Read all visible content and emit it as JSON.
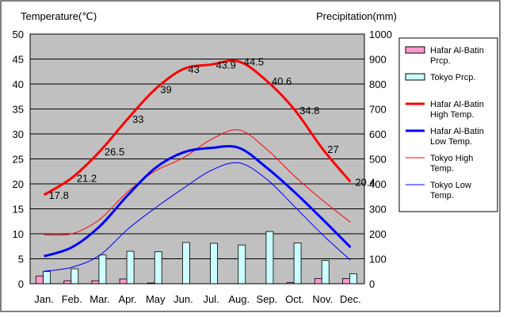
{
  "chart_data": {
    "type": "bar+line",
    "left_axis_title": "Temperature(℃)",
    "right_axis_title": "Precipitation(mm)",
    "categories": [
      "Jan.",
      "Feb.",
      "Mar.",
      "Apr.",
      "May",
      "Jun.",
      "Jul.",
      "Aug.",
      "Sep.",
      "Oct.",
      "Nov.",
      "Dec."
    ],
    "temp_ylim": [
      0,
      50
    ],
    "temp_ticks": [
      "0",
      "5",
      "10",
      "15",
      "20",
      "25",
      "30",
      "35",
      "40",
      "45",
      "50"
    ],
    "precip_ylim": [
      0,
      1000
    ],
    "precip_ticks": [
      "0",
      "100",
      "200",
      "300",
      "400",
      "500",
      "600",
      "700",
      "800",
      "900",
      "1000"
    ],
    "grid": true,
    "legend_position": "right",
    "bar_series": [
      {
        "name": "Hafar Al-Batin Prcp.",
        "legend_lines": [
          "Hafar Al-Batin",
          "Prcp."
        ],
        "color": "#ff99cc",
        "values": [
          31,
          12,
          12,
          19,
          3,
          0,
          0,
          0,
          0,
          5,
          21,
          21
        ]
      },
      {
        "name": "Tokyo Prcp.",
        "legend_lines": [
          "Tokyo Prcp."
        ],
        "color": "#ccffff",
        "values": [
          49,
          60,
          115,
          130,
          128,
          165,
          162,
          155,
          209,
          163,
          93,
          40
        ]
      }
    ],
    "line_series": [
      {
        "name": "Hafar Al-Batin High Temp.",
        "legend_lines": [
          "Hafar Al-Batin",
          "High Temp."
        ],
        "color": "#ff0000",
        "width": 3,
        "labeled": true,
        "values": [
          17.8,
          21.2,
          26.5,
          33,
          39,
          43,
          43.9,
          44.5,
          40.6,
          34.8,
          27,
          20.4
        ],
        "labels": [
          "17.8",
          "21.2",
          "26.5",
          "33",
          "39",
          "43",
          "43.9",
          "44.5",
          "40.6",
          "34.8",
          "27",
          "20.4"
        ]
      },
      {
        "name": "Hafar Al-Batin Low Temp.",
        "legend_lines": [
          "Hafar Al-Batin",
          "Low Temp."
        ],
        "color": "#0000ff",
        "width": 3,
        "labeled": false,
        "values": [
          5.5,
          7.3,
          11.5,
          17.7,
          23.2,
          26.3,
          27.2,
          27.2,
          23.2,
          18.3,
          12.9,
          7.3
        ]
      },
      {
        "name": "Tokyo High Temp.",
        "legend_lines": [
          "Tokyo High",
          "Temp."
        ],
        "color": "#ff0000",
        "width": 1,
        "labeled": false,
        "values": [
          9.8,
          10.0,
          12.9,
          18.4,
          22.6,
          25.2,
          28.9,
          30.8,
          26.9,
          21.5,
          16.7,
          12.3
        ]
      },
      {
        "name": "Tokyo Low Temp.",
        "legend_lines": [
          "Tokyo Low",
          "Temp."
        ],
        "color": "#0000ff",
        "width": 1,
        "labeled": false,
        "values": [
          2.5,
          3.3,
          5.7,
          10.9,
          15.2,
          19.1,
          22.7,
          24.2,
          20.9,
          15.4,
          9.8,
          4.7
        ]
      }
    ]
  }
}
